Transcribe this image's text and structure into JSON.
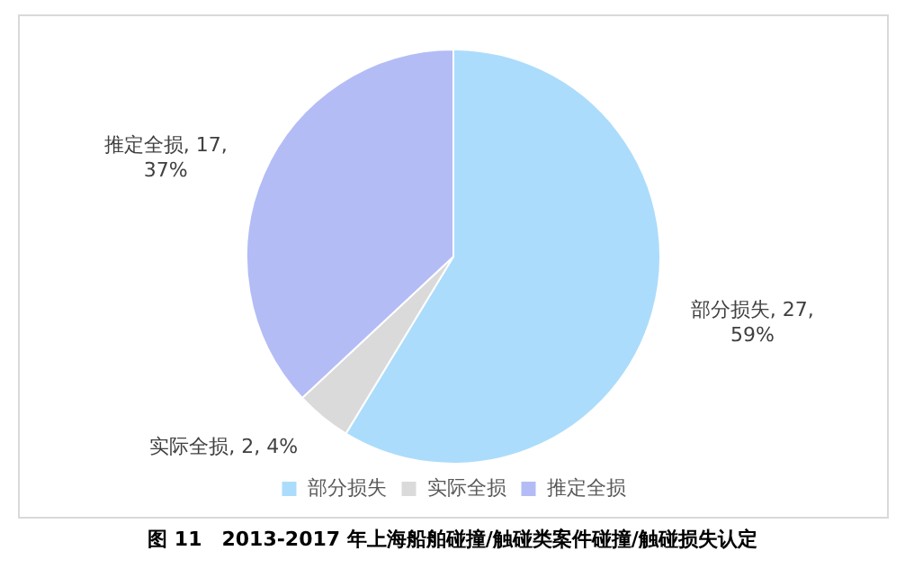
{
  "chart_data": {
    "type": "pie",
    "title": "图 11　2013-2017 年上海船舶碰撞/触碰类案件碰撞/触碰损失认定",
    "categories": [
      "部分损失",
      "实际全损",
      "推定全损"
    ],
    "values": [
      27,
      2,
      17
    ],
    "colors": [
      "#acdcfb",
      "#dadada",
      "#b3bcf5"
    ],
    "value_labels": [
      "部分损失, 27, 59%",
      "实际全损, 2, 4%",
      "推定全损, 17, 37%"
    ],
    "legend": "bottom"
  }
}
